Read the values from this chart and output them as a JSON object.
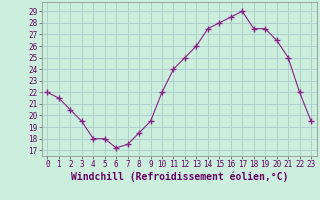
{
  "x": [
    0,
    1,
    2,
    3,
    4,
    5,
    6,
    7,
    8,
    9,
    10,
    11,
    12,
    13,
    14,
    15,
    16,
    17,
    18,
    19,
    20,
    21,
    22,
    23
  ],
  "y": [
    22,
    21.5,
    20.5,
    19.5,
    18,
    18,
    17.2,
    17.5,
    18.5,
    19.5,
    22,
    24,
    25,
    26,
    27.5,
    28,
    28.5,
    29,
    27.5,
    27.5,
    26.5,
    25,
    22,
    19.5
  ],
  "line_color": "#882288",
  "marker": "+",
  "marker_size": 4,
  "bg_color": "#cceedd",
  "grid_color": "#aacccc",
  "xlabel": "Windchill (Refroidissement éolien,°C)",
  "xlabel_fontsize": 7,
  "yticks": [
    17,
    18,
    19,
    20,
    21,
    22,
    23,
    24,
    25,
    26,
    27,
    28,
    29
  ],
  "xticks": [
    0,
    1,
    2,
    3,
    4,
    5,
    6,
    7,
    8,
    9,
    10,
    11,
    12,
    13,
    14,
    15,
    16,
    17,
    18,
    19,
    20,
    21,
    22,
    23
  ],
  "ylim": [
    16.5,
    29.8
  ],
  "xlim": [
    -0.5,
    23.5
  ],
  "tick_fontsize": 5.5
}
